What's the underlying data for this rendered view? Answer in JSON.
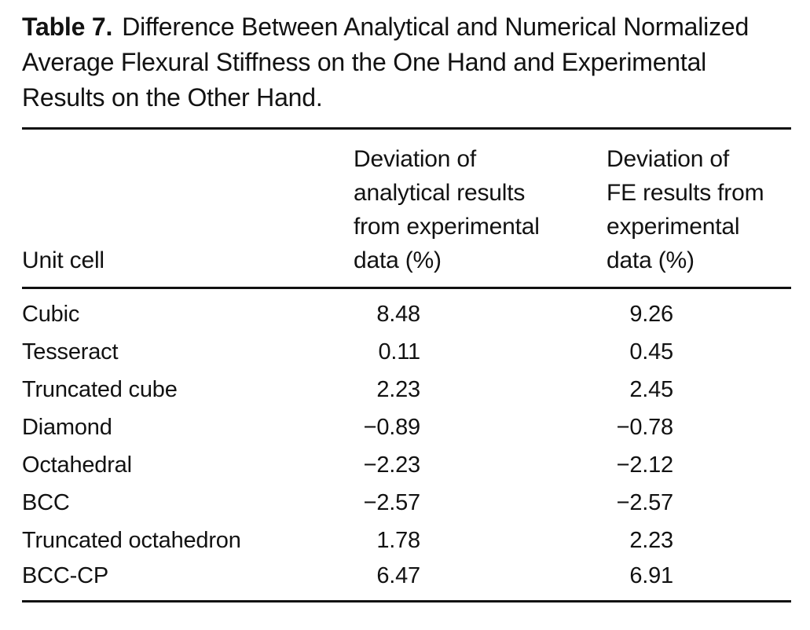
{
  "page": {
    "background": "#ffffff",
    "text_color": "#121212",
    "rule_color": "#111111"
  },
  "table": {
    "label": "Table 7.",
    "caption": "Difference Between Analytical and Numerical Normalized Average Flexural Stiffness on the One Hand and Experimental Results on the Other Hand.",
    "header": {
      "unit_cell": "Unit cell",
      "col_analytical": "Deviation of\nanalytical results\nfrom experimental\ndata (%)",
      "col_fe": "Deviation of\nFE results from\nexperimental\ndata (%)"
    },
    "rows": [
      {
        "unit_cell": "Cubic",
        "analytical": "8.48",
        "fe": "9.26"
      },
      {
        "unit_cell": "Tesseract",
        "analytical": "0.11",
        "fe": "0.45"
      },
      {
        "unit_cell": "Truncated cube",
        "analytical": "2.23",
        "fe": "2.45"
      },
      {
        "unit_cell": "Diamond",
        "analytical": "−0.89",
        "fe": "−0.78"
      },
      {
        "unit_cell": "Octahedral",
        "analytical": "−2.23",
        "fe": "−2.12"
      },
      {
        "unit_cell": "BCC",
        "analytical": "−2.57",
        "fe": "−2.57"
      },
      {
        "unit_cell": "Truncated octahedron",
        "analytical": "1.78",
        "fe": "2.23"
      },
      {
        "unit_cell": "BCC-CP",
        "analytical": "6.47",
        "fe": "6.91"
      }
    ]
  },
  "chart_data": {
    "type": "table",
    "title": "Table 7. Difference Between Analytical and Numerical Normalized Average Flexural Stiffness on the One Hand and Experimental Results on the Other Hand.",
    "categories": [
      "Cubic",
      "Tesseract",
      "Truncated cube",
      "Diamond",
      "Octahedral",
      "BCC",
      "Truncated octahedron",
      "BCC-CP"
    ],
    "series": [
      {
        "name": "Deviation of analytical results from experimental data (%)",
        "values": [
          8.48,
          0.11,
          2.23,
          -0.89,
          -2.23,
          -2.57,
          1.78,
          6.47
        ]
      },
      {
        "name": "Deviation of FE results from experimental data (%)",
        "values": [
          9.26,
          0.45,
          2.45,
          -0.78,
          -2.12,
          -2.57,
          2.23,
          6.91
        ]
      }
    ]
  }
}
